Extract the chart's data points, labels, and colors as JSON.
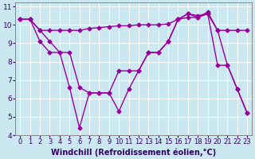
{
  "background_color": "#cbe8f0",
  "line_color": "#990099",
  "marker": "D",
  "markersize": 2.5,
  "linewidth": 1.0,
  "xlim": [
    -0.5,
    23.5
  ],
  "ylim": [
    4,
    11.2
  ],
  "xlabel": "Windchill (Refroidissement éolien,°C)",
  "xlabel_fontsize": 7,
  "xticks": [
    0,
    1,
    2,
    3,
    4,
    5,
    6,
    7,
    8,
    9,
    10,
    11,
    12,
    13,
    14,
    15,
    16,
    17,
    18,
    19,
    20,
    21,
    22,
    23
  ],
  "yticks": [
    4,
    5,
    6,
    7,
    8,
    9,
    10,
    11
  ],
  "tick_fontsize": 6.5,
  "line1_x": [
    0,
    1,
    2,
    3,
    4,
    5,
    6,
    7,
    8,
    9,
    10,
    11,
    12,
    13,
    14,
    15,
    16,
    17,
    18,
    19,
    20,
    21,
    22,
    23
  ],
  "line1_y": [
    10.3,
    10.3,
    9.7,
    9.7,
    9.7,
    9.7,
    9.7,
    9.8,
    9.85,
    9.9,
    9.95,
    9.95,
    10.0,
    10.0,
    10.0,
    10.05,
    10.3,
    10.4,
    10.4,
    10.7,
    9.7,
    9.7,
    9.7,
    9.7
  ],
  "line2_x": [
    0,
    1,
    2,
    3,
    4,
    5,
    6,
    7,
    8,
    9,
    10,
    11,
    12,
    13,
    14,
    15,
    16,
    17,
    18,
    19,
    20,
    21,
    22,
    23
  ],
  "line2_y": [
    10.3,
    10.3,
    9.1,
    8.5,
    8.5,
    8.5,
    6.6,
    6.3,
    6.3,
    6.3,
    7.5,
    7.5,
    7.5,
    8.5,
    8.5,
    9.1,
    10.3,
    10.6,
    10.5,
    10.6,
    7.8,
    7.8,
    6.5,
    5.2
  ],
  "line3_x": [
    0,
    1,
    2,
    3,
    4,
    5,
    6,
    7,
    8,
    9,
    10,
    11,
    12,
    13,
    14,
    15,
    16,
    17,
    18,
    19,
    20,
    21,
    22,
    23
  ],
  "line3_y": [
    10.3,
    10.3,
    9.7,
    9.1,
    8.5,
    6.6,
    4.4,
    6.3,
    6.3,
    6.3,
    5.3,
    6.5,
    7.5,
    8.5,
    8.5,
    9.1,
    10.3,
    10.6,
    10.4,
    10.6,
    9.7,
    7.8,
    6.5,
    5.2
  ]
}
